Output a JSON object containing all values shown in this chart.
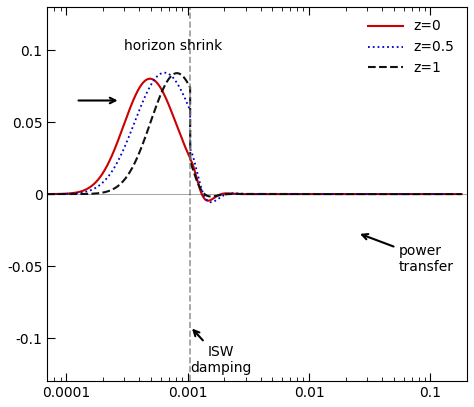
{
  "xlim": [
    7e-05,
    0.2
  ],
  "ylim": [
    -0.13,
    0.13
  ],
  "yticks": [
    -0.1,
    -0.05,
    0,
    0.05,
    0.1
  ],
  "ytick_labels": [
    "-0.1",
    "-0.05",
    "0",
    "0.05",
    "0.1"
  ],
  "vline_x": 0.00105,
  "vline_label": "horizon shrink",
  "legend_entries": [
    "z=0",
    "z=0.5",
    "z=1"
  ],
  "line_colors": [
    "#cc0000",
    "#0000cc",
    "#111111"
  ],
  "line_styles": [
    "solid",
    "dotted",
    "dashed"
  ],
  "annotation_arrow1_text": "",
  "annotation_isw_text": "ISW\ndamping",
  "annotation_power_text": "power\ntransfer",
  "background_color": "#ffffff",
  "figsize": [
    4.74,
    4.07
  ],
  "dpi": 100
}
